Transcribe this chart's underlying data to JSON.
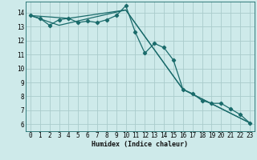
{
  "xlabel": "Humidex (Indice chaleur)",
  "bg_color": "#ceeaea",
  "grid_color": "#aacccc",
  "line_color": "#1a6b6b",
  "spine_color": "#1a6b6b",
  "xlim": [
    -0.5,
    23.5
  ],
  "ylim": [
    5.5,
    14.8
  ],
  "xtick_labels": [
    "0",
    "1",
    "2",
    "3",
    "4",
    "5",
    "6",
    "7",
    "8",
    "9",
    "10",
    "11",
    "12",
    "13",
    "14",
    "15",
    "16",
    "17",
    "18",
    "19",
    "20",
    "21",
    "22",
    "23"
  ],
  "xtick_pos": [
    0,
    1,
    2,
    3,
    4,
    5,
    6,
    7,
    8,
    9,
    10,
    11,
    12,
    13,
    14,
    15,
    16,
    17,
    18,
    19,
    20,
    21,
    22,
    23
  ],
  "ytick_pos": [
    6,
    7,
    8,
    9,
    10,
    11,
    12,
    13,
    14
  ],
  "line1_x": [
    0,
    1,
    2,
    3,
    4,
    5,
    6,
    7,
    8,
    9,
    10,
    11,
    12,
    13,
    14,
    15,
    16,
    17,
    18,
    19,
    20,
    21,
    22,
    23
  ],
  "line1_y": [
    13.8,
    13.6,
    13.1,
    13.5,
    13.6,
    13.3,
    13.4,
    13.3,
    13.5,
    13.8,
    14.5,
    12.6,
    11.1,
    11.8,
    11.5,
    10.6,
    8.5,
    8.2,
    7.7,
    7.5,
    7.5,
    7.1,
    6.7,
    6.1
  ],
  "line2_x": [
    0,
    3,
    10,
    16,
    23
  ],
  "line2_y": [
    13.8,
    13.1,
    14.2,
    8.5,
    6.1
  ],
  "line3_x": [
    0,
    4,
    10,
    16,
    23
  ],
  "line3_y": [
    13.8,
    13.6,
    14.2,
    8.5,
    6.1
  ],
  "marker": "D",
  "markersize": 2.2,
  "linewidth": 0.9,
  "tick_fontsize": 5.5,
  "xlabel_fontsize": 6.0
}
